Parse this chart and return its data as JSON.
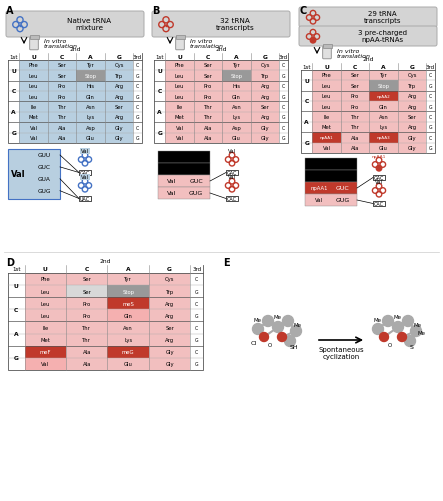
{
  "aa_table_C": {
    "U": {
      "U": "Phe",
      "C": "Ser",
      "A": "Tyr",
      "G": "Cys"
    },
    "C": {
      "U": "Leu",
      "C": "Pro",
      "A": "His",
      "G": "Arg"
    },
    "A": {
      "U": "Ile",
      "C": "Thr",
      "A": "Asn",
      "G": "Ser"
    },
    "G": {
      "U": "Val",
      "C": "Ala",
      "A": "Asp",
      "G": "Gly"
    }
  },
  "aa_table_G": {
    "U": {
      "U": "Leu",
      "C": "Ser",
      "A": "Stop",
      "G": "Trp"
    },
    "C": {
      "U": "Leu",
      "C": "Pro",
      "A": "Gln",
      "G": "Arg"
    },
    "A": {
      "U": "Met",
      "C": "Thr",
      "A": "Lys",
      "G": "Arg"
    },
    "G": {
      "U": "Val",
      "C": "Ala",
      "A": "Glu",
      "G": "Gly"
    }
  },
  "panel_A_special": {},
  "panel_B_special": {},
  "panel_C_special": {
    "G_U_C": "npAA1",
    "C_A_C": "npAA2",
    "G_A_C": "npAA3"
  },
  "panel_D_special": {
    "C_A_C": "meS",
    "G_U_C": "meF",
    "G_A_C": "meG"
  },
  "colors": {
    "blue_cell": "#b8cfe0",
    "pink_cell": "#f2bfbf",
    "red_cell": "#c0392b",
    "gray_stop": "#999999",
    "white": "#ffffff",
    "gray_bg": "#d8d8d8",
    "blue_trna": "#4472c4",
    "red_trna": "#c0392b",
    "black": "#000000"
  },
  "rows_1st": [
    "U",
    "C",
    "A",
    "G"
  ],
  "cols_2nd": [
    "U",
    "C",
    "A",
    "G"
  ]
}
